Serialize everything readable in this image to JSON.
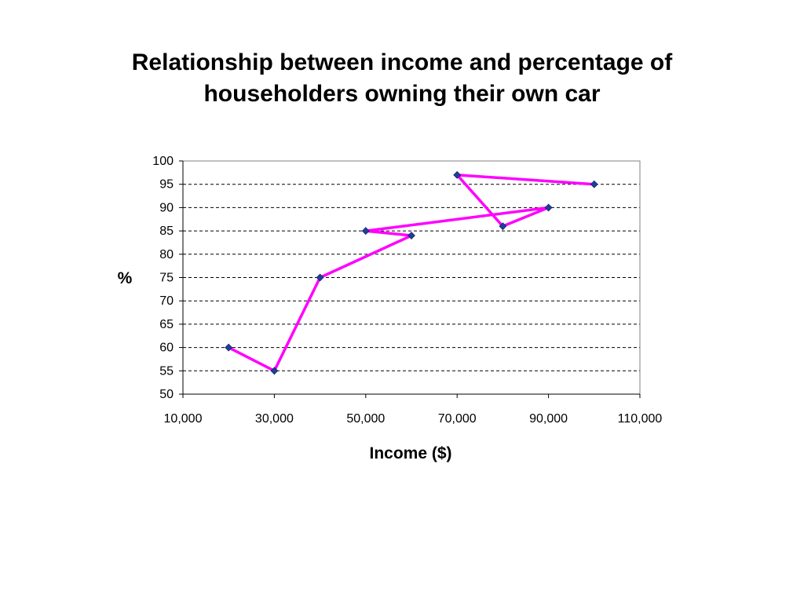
{
  "slide": {
    "title_line1": "Relationship between income and percentage of",
    "title_line2": "householders owning their own car"
  },
  "chart_data": {
    "type": "scatter",
    "title": "Relationship between income and percentage of householders owning their own car",
    "xlabel": "Income ($)",
    "ylabel": "%",
    "xlim": [
      10000,
      110000
    ],
    "ylim": [
      50,
      100
    ],
    "x_ticks": [
      10000,
      30000,
      50000,
      70000,
      90000,
      110000
    ],
    "x_tick_labels": [
      "10,000",
      "30,000",
      "50,000",
      "70,000",
      "90,000",
      "110,000"
    ],
    "y_ticks": [
      50,
      55,
      60,
      65,
      70,
      75,
      80,
      85,
      90,
      95,
      100
    ],
    "y_tick_labels": [
      "50",
      "55",
      "60",
      "65",
      "70",
      "75",
      "80",
      "85",
      "90",
      "95",
      "100"
    ],
    "grid": "horizontal dashed",
    "series": [
      {
        "marker_color": "#1f3f99",
        "points": [
          {
            "x": 20000,
            "y": 60
          },
          {
            "x": 30000,
            "y": 55
          },
          {
            "x": 40000,
            "y": 75
          },
          {
            "x": 50000,
            "y": 85
          },
          {
            "x": 60000,
            "y": 84
          },
          {
            "x": 70000,
            "y": 97
          },
          {
            "x": 80000,
            "y": 86
          },
          {
            "x": 90000,
            "y": 90
          },
          {
            "x": 100000,
            "y": 95
          }
        ]
      }
    ],
    "overlay_line": {
      "color": "#ff00ff",
      "points": [
        {
          "x": 20000,
          "y": 60
        },
        {
          "x": 30000,
          "y": 55
        },
        {
          "x": 40000,
          "y": 75
        },
        {
          "x": 60000,
          "y": 84
        },
        {
          "x": 50000,
          "y": 85
        },
        {
          "x": 90000,
          "y": 90
        },
        {
          "x": 80000,
          "y": 86
        },
        {
          "x": 70000,
          "y": 97
        },
        {
          "x": 100000,
          "y": 95
        }
      ]
    }
  }
}
